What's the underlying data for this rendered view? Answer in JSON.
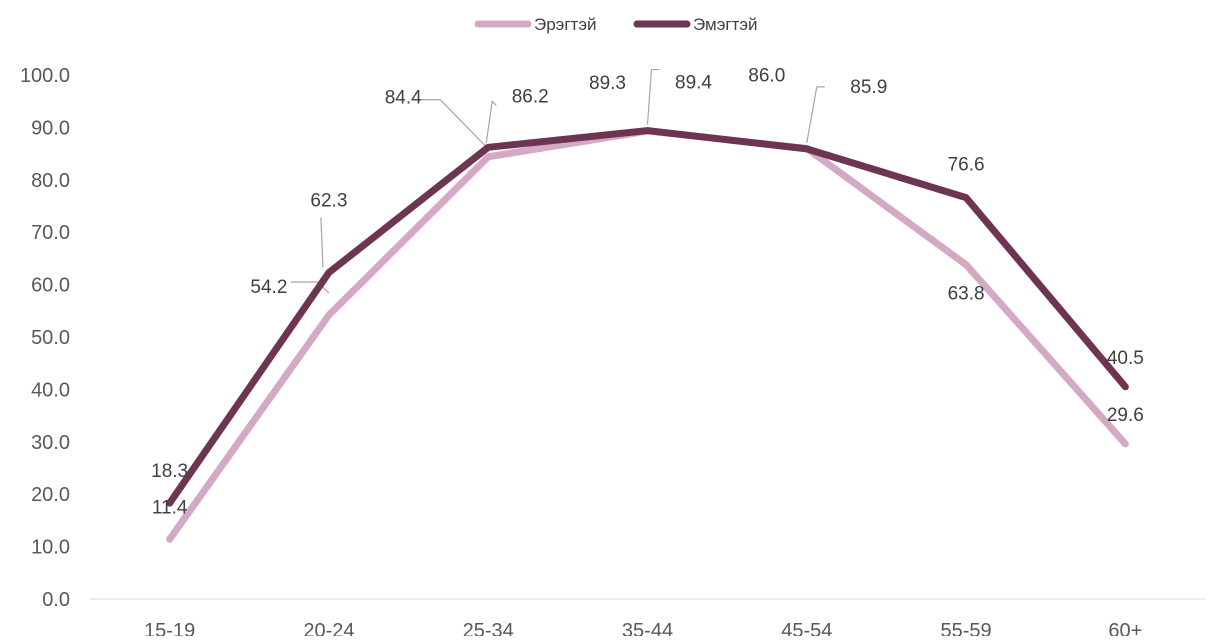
{
  "chart_data": {
    "type": "line",
    "title": "",
    "xlabel": "",
    "ylabel": "",
    "categories": [
      "15-19",
      "20-24",
      "25-34",
      "35-44",
      "45-54",
      "55-59",
      "60+"
    ],
    "ylim": [
      0,
      100
    ],
    "yticks": [
      "0.0",
      "10.0",
      "20.0",
      "30.0",
      "40.0",
      "50.0",
      "60.0",
      "70.0",
      "80.0",
      "90.0",
      "100.0"
    ],
    "grid": false,
    "legend_position": "top",
    "series": [
      {
        "name": "Эрэгтэй",
        "color": "#d3a9c5",
        "values": [
          11.4,
          54.2,
          84.4,
          89.3,
          86.0,
          63.8,
          29.6
        ],
        "labels": [
          "11.4",
          "54.2",
          "84.4",
          "89.3",
          "86.0",
          "63.8",
          "29.6"
        ]
      },
      {
        "name": "Эмэгтэй",
        "color": "#6e3553",
        "values": [
          18.3,
          62.3,
          86.2,
          89.4,
          85.9,
          76.6,
          40.5
        ],
        "labels": [
          "18.3",
          "62.3",
          "86.2",
          "89.4",
          "85.9",
          "76.6",
          "40.5"
        ]
      }
    ]
  }
}
